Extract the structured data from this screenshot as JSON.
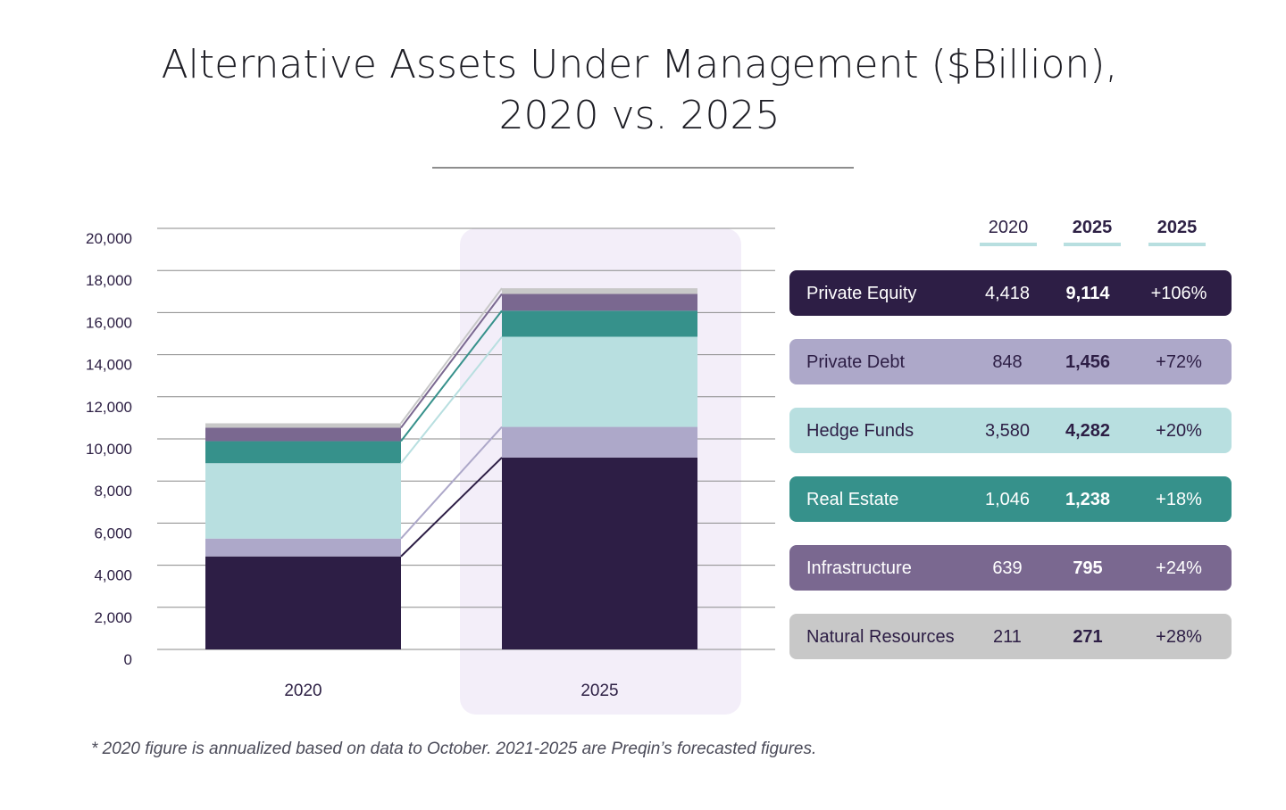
{
  "title_line1": "Alternative Assets Under Management ($Billion),",
  "title_line2": "2020 vs. 2025",
  "footnote": "* 2020 figure is annualized based on data to October. 2021-2025 are Preqin’s forecasted figures.",
  "table": {
    "headers": [
      "2020",
      "2025",
      "2025"
    ],
    "rows": [
      {
        "name": "Private Equity",
        "v2020": "4,418",
        "v2025": "9,114",
        "change": "+106%",
        "bg": "#2d1e45",
        "fg": "#ffffff"
      },
      {
        "name": "Private Debt",
        "v2020": "848",
        "v2025": "1,456",
        "change": "+72%",
        "bg": "#ada8c9",
        "fg": "#2d1e45"
      },
      {
        "name": "Hedge Funds",
        "v2020": "3,580",
        "v2025": "4,282",
        "change": "+20%",
        "bg": "#b8dfe0",
        "fg": "#2d1e45"
      },
      {
        "name": "Real Estate",
        "v2020": "1,046",
        "v2025": "1,238",
        "change": "+18%",
        "bg": "#36918b",
        "fg": "#ffffff"
      },
      {
        "name": "Infrastructure",
        "v2020": "639",
        "v2025": "795",
        "change": "+24%",
        "bg": "#7a6890",
        "fg": "#ffffff"
      },
      {
        "name": "Natural Resources",
        "v2020": "211",
        "v2025": "271",
        "change": "+28%",
        "bg": "#c8c8c8",
        "fg": "#2d1e45"
      }
    ]
  },
  "chart_data": {
    "type": "bar",
    "stacked": true,
    "title": "Alternative Assets Under Management ($Billion), 2020 vs. 2025",
    "categories": [
      "2020",
      "2025"
    ],
    "highlight_category": "2025",
    "highlight_color": "#f3eef9",
    "ylim": [
      0,
      20000
    ],
    "yticks": [
      0,
      2000,
      4000,
      6000,
      8000,
      10000,
      12000,
      14000,
      16000,
      18000,
      20000
    ],
    "ytick_labels": [
      "0",
      "2,000",
      "4,000",
      "6,000",
      "8,000",
      "10,000",
      "12,000",
      "14,000",
      "16,000",
      "18,000",
      "20,000"
    ],
    "grid": true,
    "connector_lines": true,
    "series": [
      {
        "name": "Private Equity",
        "values": [
          4418,
          9114
        ],
        "color": "#2d1e45"
      },
      {
        "name": "Private Debt",
        "values": [
          848,
          1456
        ],
        "color": "#ada8c9"
      },
      {
        "name": "Hedge Funds",
        "values": [
          3580,
          4282
        ],
        "color": "#b8dfe0"
      },
      {
        "name": "Real Estate",
        "values": [
          1046,
          1238
        ],
        "color": "#36918b"
      },
      {
        "name": "Infrastructure",
        "values": [
          639,
          795
        ],
        "color": "#7a6890"
      },
      {
        "name": "Natural Resources",
        "values": [
          211,
          271
        ],
        "color": "#c8c8c8"
      }
    ]
  }
}
